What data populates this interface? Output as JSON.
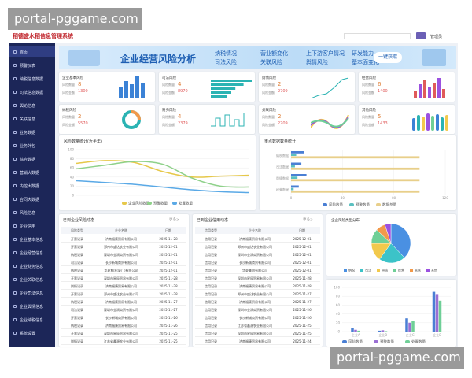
{
  "watermark": "portal-pggame.com",
  "header": {
    "title": "稻德盛水稻信息管理系统",
    "user": "管理员"
  },
  "sidebar": {
    "items": [
      "首页",
      "预警仪表",
      "纳税信息数据",
      "司法信息数据",
      "舆论信息",
      "关联信息",
      "业务数据",
      "业务外包",
      "综合数据",
      "营销大数据",
      "内控大数据",
      "合同大数据",
      "风险信息",
      "企业信用",
      "企业基本信息",
      "企业经营信息",
      "企业财务信息",
      "企业关联信息",
      "企业司法信息",
      "企业舆情信息",
      "企业纳税信息",
      "系统设置"
    ]
  },
  "banner": {
    "title": "企业经营风险分析",
    "tags": [
      "纳税情况",
      "司法风险",
      "营业额变化",
      "关联风险",
      "上下游客户情况",
      "舆情风险",
      "研发能力",
      "基本面变化"
    ],
    "button": "一键获取"
  },
  "cards": [
    {
      "title": "企业基本风险",
      "rows": [
        {
          "label": "风险数量",
          "value": 8
        },
        {
          "label": "风险金额",
          "value": 1300
        }
      ]
    },
    {
      "title": "司法风险",
      "rows": [
        {
          "label": "风险数量",
          "value": 4
        },
        {
          "label": "风险金额",
          "value": 8970
        }
      ]
    },
    {
      "title": "舆情风险",
      "rows": [
        {
          "label": "风险数量",
          "value": 2
        },
        {
          "label": "风险金额",
          "value": 2709
        }
      ]
    },
    {
      "title": "经营风险",
      "rows": [
        {
          "label": "风险数量",
          "value": 6
        },
        {
          "label": "风险金额",
          "value": 1400
        }
      ]
    },
    {
      "title": "纳税风险",
      "rows": [
        {
          "label": "风险数量",
          "value": 2
        },
        {
          "label": "风险金额",
          "value": 5570
        }
      ]
    },
    {
      "title": "财务风险",
      "rows": [
        {
          "label": "风险数量",
          "value": 4
        },
        {
          "label": "风险金额",
          "value": 2379
        }
      ]
    },
    {
      "title": "关联风险",
      "rows": [
        {
          "label": "风险数量",
          "value": 2
        },
        {
          "label": "风险金额",
          "value": 2709
        }
      ]
    },
    {
      "title": "其他风险",
      "rows": [
        {
          "label": "风险数量",
          "value": 5
        },
        {
          "label": "风险金额",
          "value": 1433
        }
      ]
    }
  ],
  "line_chart": {
    "type": "line",
    "title": "风险数量统计(近半年)",
    "ylim": [
      0,
      100
    ],
    "yticks": [
      0,
      20,
      40,
      60,
      80,
      100
    ],
    "series": [
      {
        "name": "企业风险数量",
        "color": "#e6c84a",
        "values": [
          70,
          76,
          72,
          52,
          40,
          42,
          44
        ]
      },
      {
        "name": "预警数量",
        "color": "#8fd18a",
        "values": [
          58,
          66,
          74,
          68,
          38,
          20,
          18
        ]
      },
      {
        "name": "处置数量",
        "color": "#5aa9e6",
        "values": [
          32,
          28,
          24,
          18,
          12,
          8,
          6
        ]
      }
    ]
  },
  "hbar_chart": {
    "type": "bar",
    "title": "重点数据数量统计",
    "categories": [
      "纳税数据",
      "司法数据",
      "舆情数据",
      "经营数据"
    ],
    "xlim": [
      0,
      120
    ],
    "xticks": [
      0,
      40,
      80,
      120
    ],
    "series": [
      {
        "name": "风险数量",
        "color": "#4a7fd4",
        "values": [
          10,
          8,
          12,
          6
        ]
      },
      {
        "name": "预警数量",
        "color": "#5bc0c0",
        "values": [
          4,
          3,
          5,
          2
        ]
      },
      {
        "name": "数据总量",
        "color": "#e8cf8a",
        "values": [
          100,
          100,
          100,
          100
        ]
      }
    ]
  },
  "tables": [
    {
      "title": "已到企业风险动态",
      "more": "更多>",
      "headers": [
        "风险类型",
        "企业名称",
        "日期"
      ],
      "rows": [
        [
          "开票记录",
          "济南福康贸易有限公司",
          "2025-11-28"
        ],
        [
          "开票记录",
          "郑州市盛达农业有限公司",
          "2025-12-01"
        ],
        [
          "纳税记录",
          "深圳市金润商贸有限公司",
          "2025-12-01"
        ],
        [
          "司法记录",
          "长沙新城商贸有限公司",
          "2025-12-01"
        ],
        [
          "纳税记录",
          "华夏集团(厦门)有限公司",
          "2025-12-01"
        ],
        [
          "开票记录",
          "深圳市星辰贸易有限公司",
          "2025-11-28"
        ],
        [
          "舆情记录",
          "济南福康贸易有限公司",
          "2025-11-28"
        ],
        [
          "开票记录",
          "郑州市盛达农业有限公司",
          "2025-11-28"
        ],
        [
          "纳税记录",
          "济南福康贸易有限公司",
          "2025-11-27"
        ],
        [
          "司法记录",
          "深圳市金润商贸有限公司",
          "2025-11-27"
        ],
        [
          "开票记录",
          "长沙新城商贸有限公司",
          "2025-11-26"
        ],
        [
          "纳税记录",
          "济南福康贸易有限公司",
          "2025-11-26"
        ],
        [
          "开票记录",
          "深圳市星辰贸易有限公司",
          "2025-11-25"
        ],
        [
          "舆情记录",
          "江苏省鑫源农业有限公司",
          "2025-11-25"
        ]
      ]
    },
    {
      "title": "已到企业信用动态",
      "more": "更多>",
      "headers": [
        "信用类型",
        "企业名称",
        "日期"
      ],
      "rows": [
        [
          "信用记录",
          "济南福康贸易有限公司",
          "2025-12-01"
        ],
        [
          "信用记录",
          "郑州市盛达农业有限公司",
          "2025-12-01"
        ],
        [
          "信用记录",
          "深圳市金润商贸有限公司",
          "2025-12-01"
        ],
        [
          "信用记录",
          "长沙新城商贸有限公司",
          "2025-12-01"
        ],
        [
          "信用记录",
          "华夏集团有限公司",
          "2025-12-01"
        ],
        [
          "信用记录",
          "深圳市星辰贸易有限公司",
          "2025-11-28"
        ],
        [
          "信用记录",
          "济南福康贸易有限公司",
          "2025-11-28"
        ],
        [
          "信用记录",
          "郑州市盛达农业有限公司",
          "2025-11-27"
        ],
        [
          "信用记录",
          "济南福康贸易有限公司",
          "2025-11-27"
        ],
        [
          "信用记录",
          "深圳市金润商贸有限公司",
          "2025-11-26"
        ],
        [
          "信用记录",
          "长沙新城商贸有限公司",
          "2025-11-26"
        ],
        [
          "信用记录",
          "江苏省鑫源农业有限公司",
          "2025-11-25"
        ],
        [
          "信用记录",
          "深圳市星辰贸易有限公司",
          "2025-11-25"
        ],
        [
          "信用记录",
          "济南福康贸易有限公司",
          "2025-11-24"
        ]
      ]
    }
  ],
  "pie_chart": {
    "type": "pie",
    "title": "企业风险类型分布",
    "categories": [
      "纳税",
      "司法",
      "舆情",
      "经营",
      "关联",
      "其他"
    ],
    "values": [
      38,
      22,
      15,
      12,
      8,
      5
    ],
    "colors": [
      "#4a90e2",
      "#3cc3c8",
      "#f2c94c",
      "#6fcf97",
      "#f2994a",
      "#9b51e0"
    ]
  },
  "vbar_chart": {
    "type": "bar",
    "categories": [
      "企业A",
      "企业B",
      "企业C",
      "企业D"
    ],
    "ylim": [
      0,
      100
    ],
    "yticks": [
      0,
      20,
      40,
      60,
      80,
      100
    ],
    "series": [
      {
        "name": "风险数量",
        "color": "#4a7fd4",
        "values": [
          8,
          2,
          30,
          90
        ]
      },
      {
        "name": "预警数量",
        "color": "#9b6fd4",
        "values": [
          4,
          3,
          20,
          85
        ]
      },
      {
        "name": "处置数量",
        "color": "#6fcf97",
        "values": [
          2,
          1,
          25,
          70
        ]
      }
    ]
  }
}
